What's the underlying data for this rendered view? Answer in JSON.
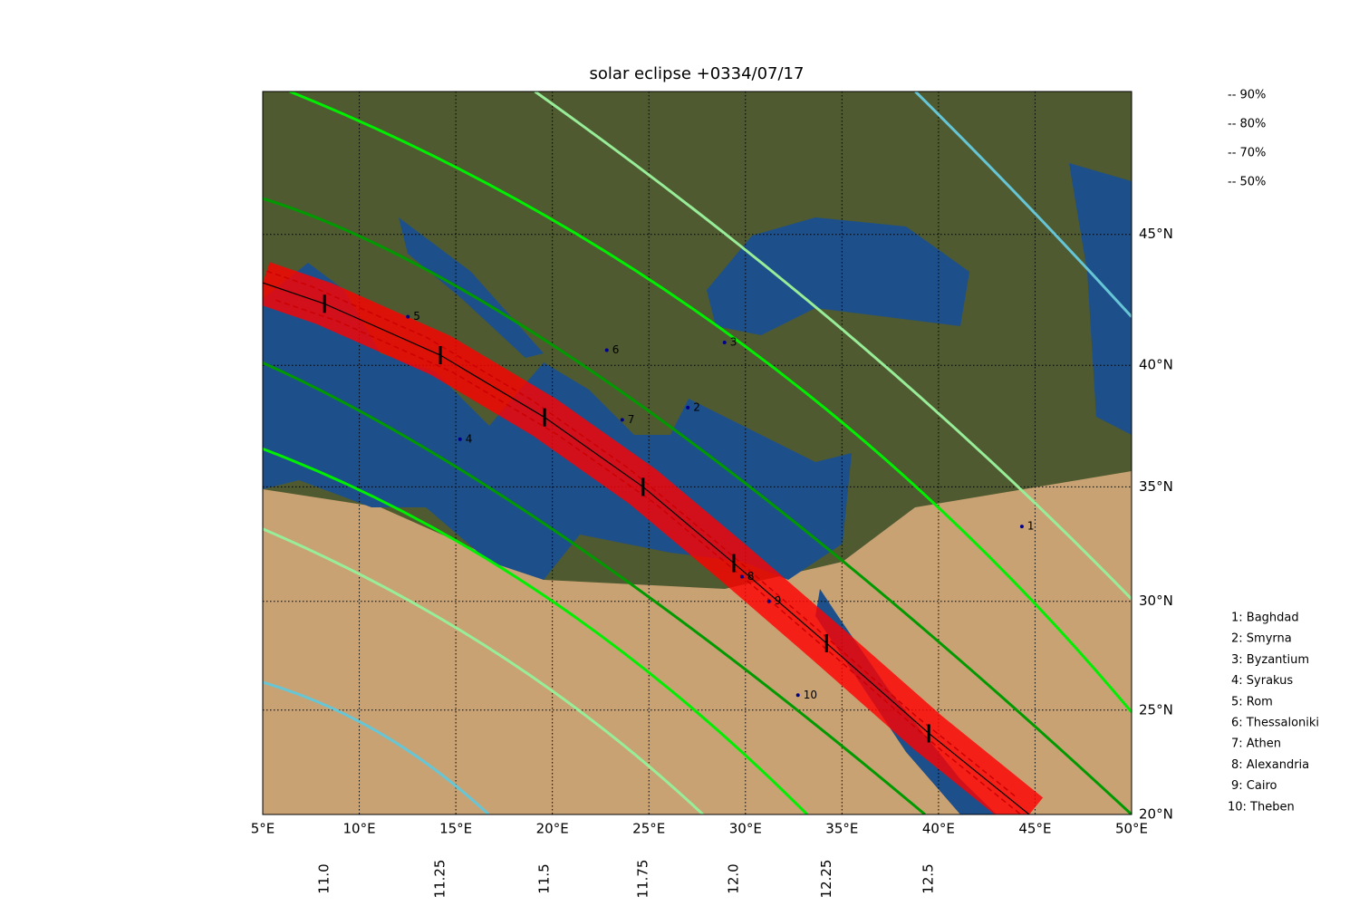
{
  "title": "solar eclipse +0334/07/17",
  "map": {
    "xlim": [
      5,
      50
    ],
    "ylim": [
      20,
      50
    ],
    "grid": true,
    "xticks": [
      {
        "value": 5,
        "label": "5°E"
      },
      {
        "value": 10,
        "label": "10°E"
      },
      {
        "value": 15,
        "label": "15°E"
      },
      {
        "value": 20,
        "label": "20°E"
      },
      {
        "value": 25,
        "label": "25°E"
      },
      {
        "value": 30,
        "label": "30°E"
      },
      {
        "value": 35,
        "label": "35°E"
      },
      {
        "value": 40,
        "label": "40°E"
      },
      {
        "value": 45,
        "label": "45°E"
      },
      {
        "value": 50,
        "label": "50°E"
      }
    ],
    "yticks": [
      {
        "value": 20,
        "label": "20°N"
      },
      {
        "value": 25,
        "label": "25°N"
      },
      {
        "value": 30,
        "label": "30°N"
      },
      {
        "value": 35,
        "label": "35°N"
      },
      {
        "value": 40,
        "label": "40°N"
      },
      {
        "value": 45,
        "label": "45°N"
      }
    ]
  },
  "central_line": {
    "color": "#000000",
    "band_color": "#ff0000",
    "lon": [
      5,
      8.2,
      14.2,
      19.6,
      24.7,
      29.4,
      34.2,
      39.5,
      44.7
    ],
    "lat": [
      43.2,
      42.4,
      40.4,
      37.9,
      35,
      31.7,
      28.1,
      23.9,
      20
    ]
  },
  "time_marks": [
    {
      "value": 11,
      "label": "11.0",
      "lon": 8.2,
      "lat": 42.4
    },
    {
      "value": 11.25,
      "label": "11.25",
      "lon": 14.2,
      "lat": 40.4
    },
    {
      "value": 11.5,
      "label": "11.5",
      "lon": 19.6,
      "lat": 37.9
    },
    {
      "value": 11.75,
      "label": "11.75",
      "lon": 24.7,
      "lat": 35
    },
    {
      "value": 12,
      "label": "12.0",
      "lon": 29.4,
      "lat": 31.7
    },
    {
      "value": 12.25,
      "label": "12.25",
      "lon": 34.2,
      "lat": 28.1
    },
    {
      "value": 12.5,
      "label": "12.5",
      "lon": 39.5,
      "lat": 23.9
    }
  ],
  "magnitude_lines": [
    {
      "name": "-- 90%",
      "color": "#009a00",
      "north": {
        "lon": [
          5,
          24.2,
          50
        ],
        "lat": [
          46.3,
          38.6,
          20
        ]
      },
      "south": {
        "lon": [
          5,
          20.5,
          39.3
        ],
        "lat": [
          40.1,
          32.9,
          20
        ]
      }
    },
    {
      "name": "-- 80%",
      "color": "#00ee00",
      "north": {
        "lon": [
          6.4,
          29.9,
          50
        ],
        "lat": [
          50,
          40.8,
          24.9
        ]
      },
      "south": {
        "lon": [
          5,
          19.5,
          33.2
        ],
        "lat": [
          36.6,
          30.3,
          20
        ]
      }
    },
    {
      "name": "-- 70%",
      "color": "#98ee98",
      "north": {
        "lon": [
          19.1,
          35.5,
          50
        ],
        "lat": [
          50,
          41.1,
          30.1
        ]
      },
      "south": {
        "lon": [
          5,
          17.2,
          27.8
        ],
        "lat": [
          33.2,
          27.6,
          20
        ]
      }
    },
    {
      "name": "-- 50%",
      "color": "#66c6d6",
      "north": {
        "lon": [
          38.8,
          44.4,
          50
        ],
        "lat": [
          50,
          46.2,
          41.9
        ]
      },
      "south": {
        "lon": [
          5,
          11.1,
          16.7
        ],
        "lat": [
          26.3,
          23.9,
          20
        ]
      }
    }
  ],
  "map_labels": [
    {
      "label": "1",
      "lon": 44.6,
      "lat": 33.3
    },
    {
      "label": "2",
      "lon": 27.3,
      "lat": 38.3
    },
    {
      "label": "3",
      "lon": 29.2,
      "lat": 40.9
    },
    {
      "label": "4",
      "lon": 15.5,
      "lat": 37
    },
    {
      "label": "5",
      "lon": 12.8,
      "lat": 41.9
    },
    {
      "label": "6",
      "lon": 23.1,
      "lat": 40.6
    },
    {
      "label": "7",
      "lon": 23.9,
      "lat": 37.8
    },
    {
      "label": "8",
      "lon": 30.1,
      "lat": 31.1
    },
    {
      "label": "9",
      "lon": 31.5,
      "lat": 30
    },
    {
      "label": "10",
      "lon": 33,
      "lat": 25.7
    }
  ],
  "city_list": [
    "1: Baghdad",
    "2: Smyrna",
    "3: Byzantium",
    "4: Syrakus",
    "5: Rom",
    "6: Thessaloniki",
    "7: Athen",
    "8: Alexandria",
    "9: Cairo",
    "10: Theben"
  ]
}
